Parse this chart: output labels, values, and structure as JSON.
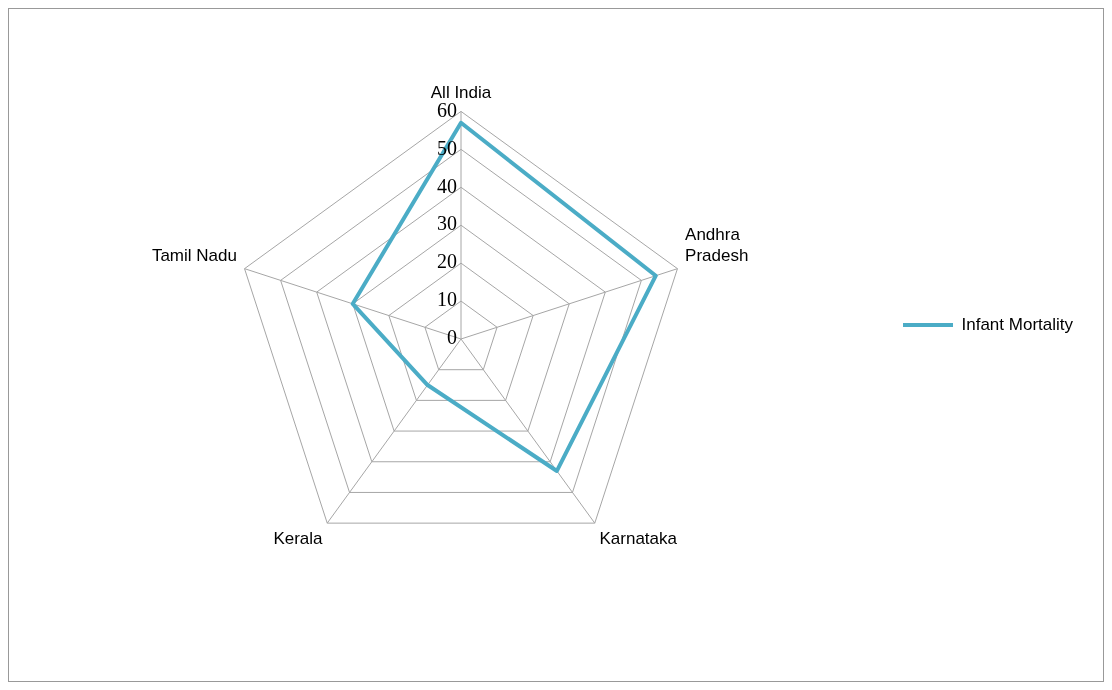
{
  "chart_data": {
    "type": "radar",
    "categories": [
      "All India",
      "Andhra Pradesh",
      "Karnataka",
      "Kerala",
      "Tamil Nadu"
    ],
    "series": [
      {
        "name": "Infant Mortality",
        "color": "#4bacc6",
        "values": [
          57,
          54,
          43,
          15,
          30
        ]
      }
    ],
    "ylim": [
      0,
      60
    ],
    "yticks": [
      0,
      10,
      20,
      30,
      40,
      50,
      60
    ],
    "grid": true,
    "legend": "right",
    "marker": "none"
  }
}
